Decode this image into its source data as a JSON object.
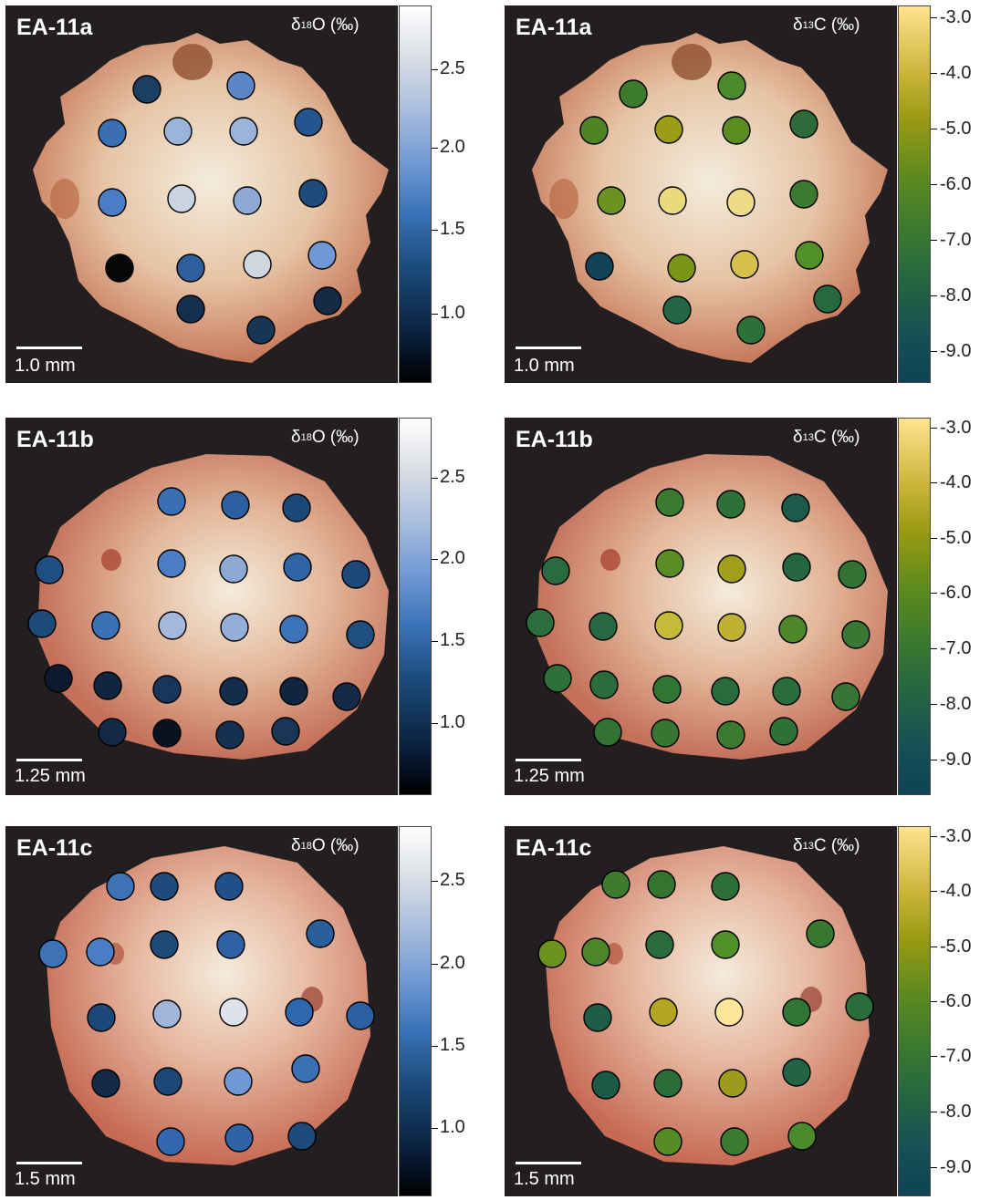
{
  "figure": {
    "scales": {
      "d18O": {
        "label_prefix": "δ",
        "label_mass": "18",
        "label_suffix": "O (‰)",
        "ticks": [
          "2.5",
          "2.0",
          "1.5",
          "1.0"
        ],
        "colors": [
          "#000000",
          "#0a1f3a",
          "#1b4a7a",
          "#3a73b8",
          "#6f98d4",
          "#a6bcdc",
          "#d9dde4",
          "#ffffff"
        ]
      },
      "d13C": {
        "label_prefix": "δ",
        "label_mass": "13",
        "label_suffix": "C (‰)",
        "ticks": [
          "-3.0",
          "-4.0",
          "-5.0",
          "-6.0",
          "-7.0",
          "-8.0",
          "-9.0"
        ],
        "colors": [
          "#ffe38f",
          "#c9b43a",
          "#9a9a13",
          "#5f8a1f",
          "#3e7b2e",
          "#26673f",
          "#164f56",
          "#0f4355"
        ]
      }
    },
    "specimen_colors": {
      "edge": "#c77a5c",
      "center": "#f4ecdc",
      "background": "#231f20"
    },
    "panels": [
      {
        "sample": "EA-11a",
        "scale": "d18O",
        "scalebar_label": "1.0 mm"
      },
      {
        "sample": "EA-11a",
        "scale": "d13C",
        "scalebar_label": "1.0 mm"
      },
      {
        "sample": "EA-11b",
        "scale": "d18O",
        "scalebar_label": "1.25 mm"
      },
      {
        "sample": "EA-11b",
        "scale": "d13C",
        "scalebar_label": "1.25 mm"
      },
      {
        "sample": "EA-11c",
        "scale": "d18O",
        "scalebar_label": "1.5 mm"
      },
      {
        "sample": "EA-11c",
        "scale": "d13C",
        "scalebar_label": "1.5 mm"
      }
    ]
  }
}
